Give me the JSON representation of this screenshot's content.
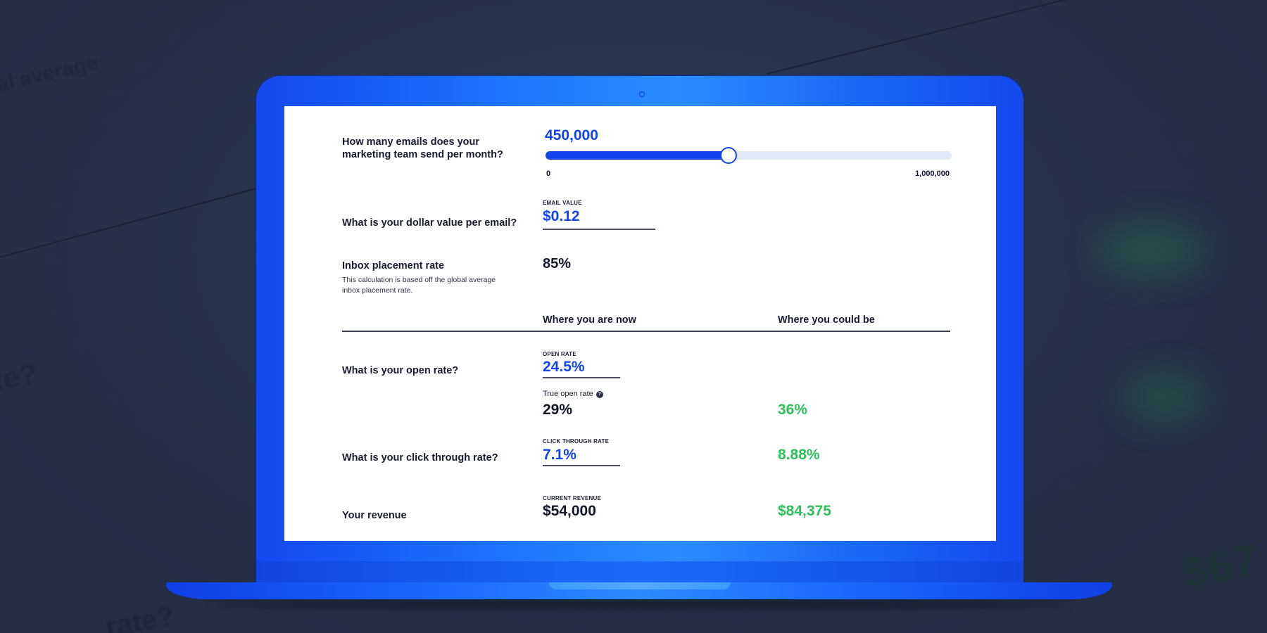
{
  "background": {
    "ghost_texts": [
      "al average",
      "te?",
      "rate?",
      "$67"
    ]
  },
  "calculator": {
    "emails_question": "How many emails does your marketing team send per month?",
    "emails_value": "450,000",
    "slider": {
      "min_label": "0",
      "max_label": "1,000,000",
      "value_fraction": 0.45
    },
    "dollar_question": "What is your dollar value per email?",
    "email_value_label": "EMAIL VALUE",
    "email_value": "$0.12",
    "inbox_title": "Inbox placement rate",
    "inbox_desc": "This calculation is based off the global average inbox placement rate.",
    "inbox_value": "85%",
    "col_now": "Where you are now",
    "col_could": "Where you could be",
    "open_question": "What is your open rate?",
    "open_rate_label": "OPEN RATE",
    "open_rate_value": "24.5%",
    "true_open_label": "True open rate",
    "help_glyph": "?",
    "true_open_now": "29%",
    "true_open_could": "36%",
    "ctr_question": "What is your click through rate?",
    "ctr_label": "CLICK THROUGH RATE",
    "ctr_value": "7.1%",
    "ctr_could": "8.88%",
    "revenue_question": "Your revenue",
    "current_revenue_label": "CURRENT REVENUE",
    "revenue_now": "$54,000",
    "revenue_could": "$84,375"
  },
  "colors": {
    "accent_blue": "#1144ee",
    "positive_green": "#2ec05c",
    "laptop_blue": "#1e78ff"
  }
}
